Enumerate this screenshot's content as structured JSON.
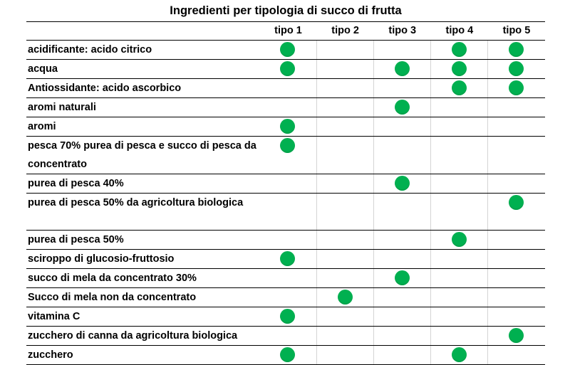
{
  "title": "Ingredienti per tipologia di succo di frutta",
  "header": {
    "col_ingredient": "",
    "types": [
      "tipo 1",
      "tipo 2",
      "tipo 3",
      "tipo 4",
      "tipo 5"
    ]
  },
  "dot_color": "#00b050",
  "rows": [
    {
      "label": "acidificante: acido citrico",
      "tall": false,
      "marks": [
        true,
        false,
        false,
        true,
        true
      ]
    },
    {
      "label": "acqua",
      "tall": false,
      "marks": [
        true,
        false,
        true,
        true,
        true
      ]
    },
    {
      "label": "Antiossidante: acido ascorbico",
      "tall": false,
      "marks": [
        false,
        false,
        false,
        true,
        true
      ]
    },
    {
      "label": "aromi naturali",
      "tall": false,
      "marks": [
        false,
        false,
        true,
        false,
        false
      ]
    },
    {
      "label": "aromi",
      "tall": false,
      "marks": [
        true,
        false,
        false,
        false,
        false
      ]
    },
    {
      "label": "pesca 70% purea di pesca e succo di pesca da concentrato",
      "tall": true,
      "marks": [
        true,
        false,
        false,
        false,
        false
      ]
    },
    {
      "label": "purea di pesca 40%",
      "tall": false,
      "marks": [
        false,
        false,
        true,
        false,
        false
      ]
    },
    {
      "label": "purea di pesca 50% da agricoltura biologica",
      "tall": true,
      "marks": [
        false,
        false,
        false,
        false,
        true
      ]
    },
    {
      "label": "purea di pesca 50%",
      "tall": false,
      "marks": [
        false,
        false,
        false,
        true,
        false
      ]
    },
    {
      "label": "sciroppo di glucosio-fruttosio",
      "tall": false,
      "marks": [
        true,
        false,
        false,
        false,
        false
      ]
    },
    {
      "label": "succo di mela da concentrato 30%",
      "tall": false,
      "marks": [
        false,
        false,
        true,
        false,
        false
      ]
    },
    {
      "label": "Succo di mela non da concentrato",
      "tall": false,
      "marks": [
        false,
        true,
        false,
        false,
        false
      ]
    },
    {
      "label": "vitamina C",
      "tall": false,
      "marks": [
        true,
        false,
        false,
        false,
        false
      ]
    },
    {
      "label": "zucchero di canna da agricoltura biologica",
      "tall": false,
      "marks": [
        false,
        false,
        false,
        false,
        true
      ]
    },
    {
      "label": "zucchero",
      "tall": false,
      "marks": [
        true,
        false,
        false,
        true,
        false
      ]
    }
  ]
}
